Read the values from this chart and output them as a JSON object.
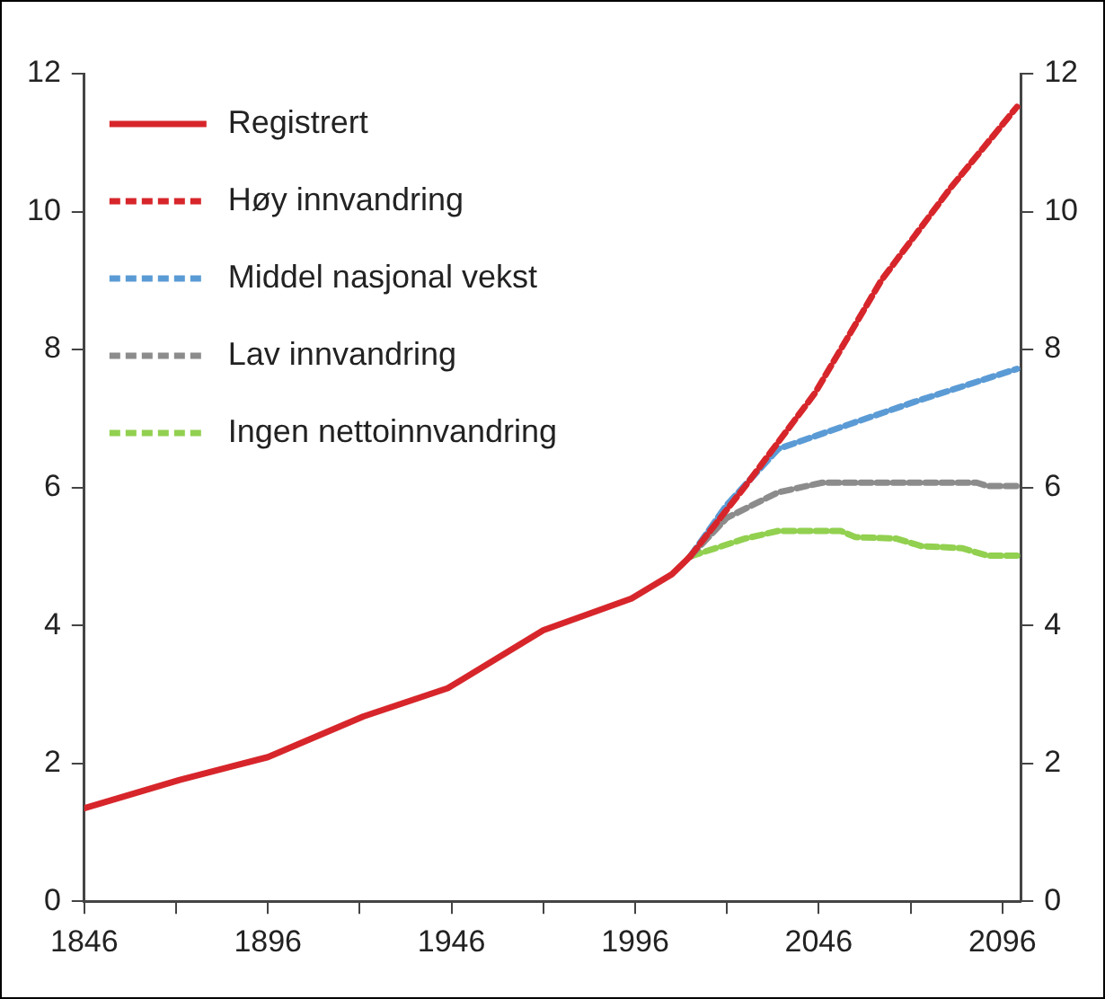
{
  "chart_data": {
    "type": "line",
    "xlim": [
      1846,
      2101
    ],
    "xticks": [
      1846,
      {
        "value": 1871,
        "label": null
      },
      1896,
      {
        "value": 1921,
        "label": null
      },
      1946,
      {
        "value": 1971,
        "label": null
      },
      1996,
      {
        "value": 2021,
        "label": null
      },
      2046,
      {
        "value": 2071,
        "label": null
      },
      2096
    ],
    "ylim": [
      0,
      12
    ],
    "yticks": [
      0,
      2,
      4,
      6,
      8,
      10,
      12
    ],
    "y2lim": [
      0,
      12
    ],
    "y2ticks": [
      0,
      2,
      4,
      6,
      8,
      10,
      12
    ],
    "grid": false,
    "legend": "top left",
    "series": [
      {
        "name": "Registrert",
        "color": "#d7262b",
        "x": [
          1846,
          1872,
          1896,
          1922,
          1945,
          1971,
          1995,
          2006,
          2011
        ],
        "values": [
          1.35,
          1.76,
          2.09,
          2.68,
          3.09,
          3.93,
          4.39,
          4.74,
          5.0
        ]
      },
      {
        "name": "Høy innvandring",
        "color": "#d7262b",
        "line_style": "dashed",
        "x": [
          2011,
          2026,
          2045,
          2063,
          2082,
          2100
        ],
        "values": [
          5.0,
          6.02,
          7.37,
          9.0,
          10.35,
          11.52
        ]
      },
      {
        "name": "Middel nasjonal vekst",
        "color": "#5b9bd5",
        "line_style": "dashed",
        "x": [
          2011,
          2021,
          2035,
          2054,
          2072,
          2100
        ],
        "values": [
          5.0,
          5.75,
          6.56,
          6.91,
          7.24,
          7.72
        ]
      },
      {
        "name": "Lav innvandring",
        "color": "#8c8c8c",
        "line_style": "dashed",
        "x": [
          2011,
          2021,
          2035,
          2047,
          2089,
          2092,
          2100
        ],
        "values": [
          5.0,
          5.56,
          5.93,
          6.07,
          6.07,
          6.02,
          6.02
        ]
      },
      {
        "name": "Ingen nettoinnvandring",
        "color": "#92d050",
        "line_style": "dashed",
        "x": [
          2011,
          2026,
          2035,
          2052,
          2056,
          2067,
          2074,
          2085,
          2092,
          2100
        ],
        "values": [
          5.0,
          5.26,
          5.37,
          5.37,
          5.28,
          5.26,
          5.15,
          5.12,
          5.01,
          5.01
        ]
      }
    ]
  }
}
